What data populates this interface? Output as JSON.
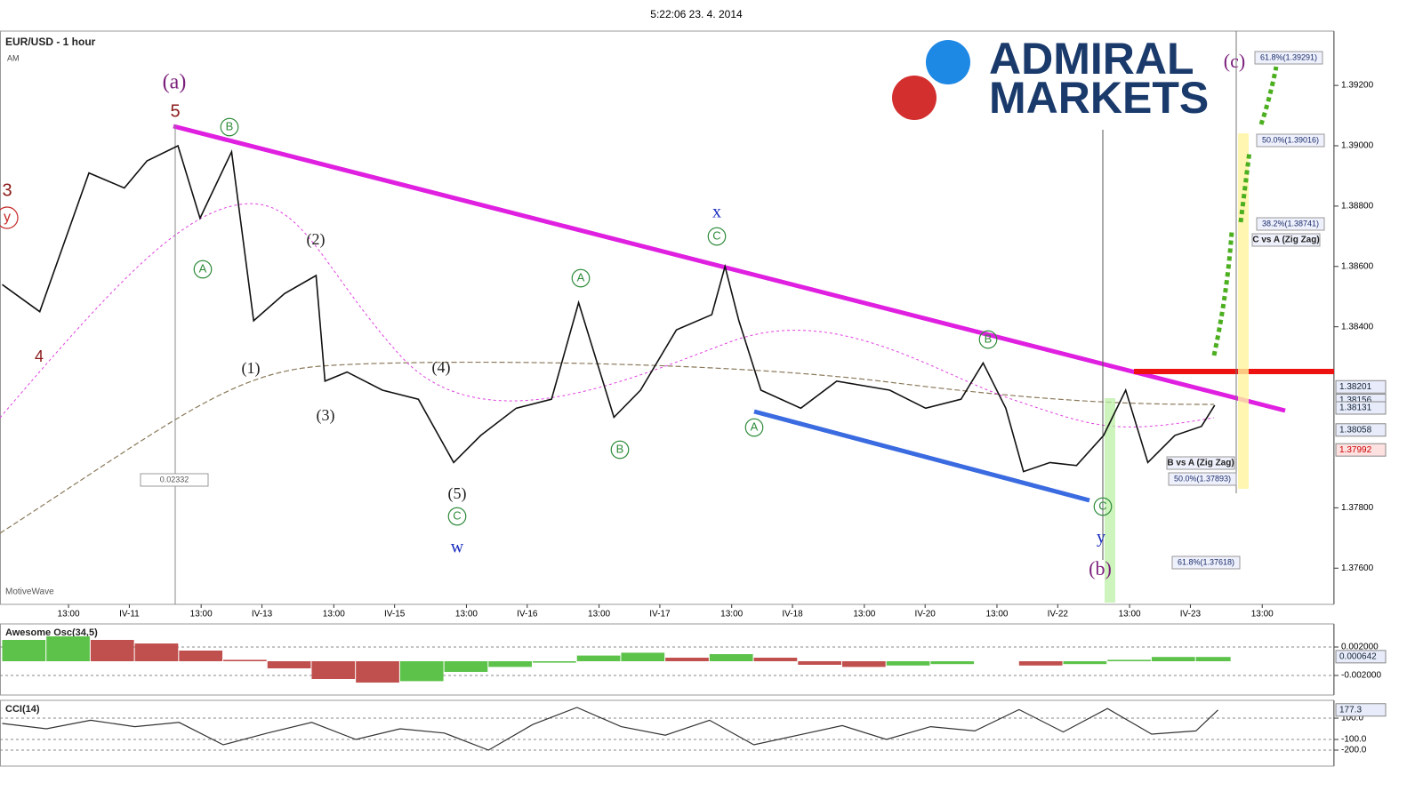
{
  "header": {
    "time": "5:22:06 23. 4. 2014",
    "sub": "AM",
    "watermark": "MotiveWave",
    "logo": [
      "ADMIRAL",
      "MARKETS"
    ]
  },
  "annotations": [
    "(a)",
    "5",
    "3",
    "y",
    "4",
    "(1)",
    "(2)",
    "(3)",
    "(4)",
    "(5)",
    "w",
    "x",
    "y",
    "(b)",
    "(c)",
    "B",
    "A",
    "A",
    "B",
    "C",
    "C",
    "A",
    "B",
    "C",
    "61.8%(1.39291)",
    "50.0%(1.39016)",
    "38.2%(1.38741)",
    "C vs A (Zig Zag)",
    "B vs A (Zig Zag)",
    "50.0%(1.37893)",
    "61.8%(1.37618)",
    "0.02332"
  ],
  "chart_data": [
    {
      "type": "line",
      "title": "EUR/USD - 1 hour",
      "color": "#111111",
      "x": [
        -12,
        -5.2,
        3.7,
        10.1,
        14.2,
        19.8,
        23.8,
        29.5,
        33.5,
        39.1,
        44.8,
        46.4,
        50.4,
        56.8,
        63.3,
        69.7,
        74.6,
        81,
        87.4,
        92.3,
        98.7,
        103.5,
        110,
        116.4,
        118.8,
        121.3,
        125.3,
        132.5,
        139,
        148.6,
        155.1,
        161.5,
        165.5,
        169.6,
        172.8,
        177.6,
        182.4,
        187.3,
        191.3,
        195.3,
        200.2,
        205,
        207.4
      ],
      "values": [
        1.3854,
        1.3845,
        1.3891,
        1.3886,
        1.3895,
        1.39,
        1.3876,
        1.3898,
        1.3842,
        1.3851,
        1.3857,
        1.3822,
        1.3825,
        1.3819,
        1.3816,
        1.3795,
        1.3804,
        1.3813,
        1.3816,
        1.3848,
        1.381,
        1.3819,
        1.3839,
        1.3844,
        1.386,
        1.3842,
        1.3819,
        1.3813,
        1.3822,
        1.3819,
        1.3813,
        1.3816,
        1.3828,
        1.3813,
        1.3792,
        1.3795,
        1.3794,
        1.3804,
        1.3819,
        1.3795,
        1.3804,
        1.3807,
        1.3814
      ],
      "xlim": [
        -12.4,
        229
      ],
      "ylim": [
        1.3748,
        1.3938
      ],
      "xticks": [
        {
          "value": 0,
          "label": "13:00"
        },
        {
          "value": 11,
          "label": "IV-11"
        },
        {
          "value": 24,
          "label": "13:00"
        },
        {
          "value": 35,
          "label": "IV-13"
        },
        {
          "value": 48,
          "label": "13:00"
        },
        {
          "value": 59,
          "label": "IV-15"
        },
        {
          "value": 72,
          "label": "13:00"
        },
        {
          "value": 83,
          "label": "IV-16"
        },
        {
          "value": 96,
          "label": "13:00"
        },
        {
          "value": 107,
          "label": "IV-17"
        },
        {
          "value": 120,
          "label": "13:00"
        },
        {
          "value": 131,
          "label": "IV-18"
        },
        {
          "value": 144,
          "label": "13:00"
        },
        {
          "value": 155,
          "label": "IV-20"
        },
        {
          "value": 168,
          "label": "13:00"
        },
        {
          "value": 179,
          "label": "IV-22"
        },
        {
          "value": 192,
          "label": "13:00"
        },
        {
          "value": 203,
          "label": "IV-23"
        },
        {
          "value": 216,
          "label": "13:00"
        }
      ],
      "yticks": [
        {
          "value": 1.392,
          "label": "1.39200"
        },
        {
          "value": 1.39,
          "label": "1.39000"
        },
        {
          "value": 1.388,
          "label": "1.38800"
        },
        {
          "value": 1.386,
          "label": "1.38600"
        },
        {
          "value": 1.384,
          "label": "1.38400"
        },
        {
          "value": 1.378,
          "label": "1.37800"
        },
        {
          "value": 1.376,
          "label": "1.37600"
        }
      ],
      "price_tags": [
        1.38201,
        1.38156,
        1.38131,
        1.38058,
        1.37992
      ]
    },
    {
      "type": "bar",
      "title": "Awesome Osc(34,5)",
      "x": [
        -12,
        -4,
        4,
        12,
        20,
        28,
        36,
        44,
        52,
        60,
        68,
        76,
        84,
        92,
        100,
        108,
        116,
        124,
        132,
        140,
        148,
        156,
        164,
        172,
        180,
        188,
        196,
        204
      ],
      "values": [
        0.003,
        0.0035,
        0.003,
        0.0025,
        0.0015,
        0.0002,
        -0.001,
        -0.0025,
        -0.003,
        -0.0028,
        -0.0015,
        -0.0008,
        -0.0002,
        0.0008,
        0.0012,
        0.0005,
        0.001,
        0.0005,
        -0.0005,
        -0.0008,
        -0.0006,
        -0.0004,
        0,
        -0.0006,
        -0.0004,
        0.0002,
        0.0006,
        0.0006
      ],
      "xlim": [
        -12.4,
        229
      ],
      "ylim": [
        -0.00475,
        0.00525
      ],
      "yticks": [
        {
          "value": 0.002,
          "label": "0.002000"
        },
        {
          "value": -0.002,
          "label": "-0.002000"
        }
      ],
      "price_tags": [
        0.000642
      ]
    },
    {
      "type": "line",
      "title": "CCI(14)",
      "color": "#333333",
      "x": [
        -12,
        -4,
        4,
        12,
        20,
        28,
        36,
        44,
        52,
        60,
        68,
        76,
        84,
        92,
        100,
        108,
        116,
        124,
        132,
        140,
        148,
        156,
        164,
        172,
        180,
        188,
        196,
        204,
        208
      ],
      "values": [
        50,
        0,
        80,
        20,
        60,
        -150,
        -40,
        60,
        -100,
        0,
        -40,
        -200,
        40,
        200,
        20,
        -60,
        80,
        -150,
        -60,
        30,
        -100,
        20,
        -20,
        180,
        -30,
        190,
        -50,
        -20,
        177.3
      ],
      "xlim": [
        -12.4,
        229
      ],
      "ylim": [
        -350,
        267
      ],
      "yticks": [
        {
          "value": 100,
          "label": "100.0"
        },
        {
          "value": -100,
          "label": "-100.0"
        },
        {
          "value": -200,
          "label": "-200.0"
        }
      ],
      "price_tags": [
        177.3
      ]
    }
  ]
}
